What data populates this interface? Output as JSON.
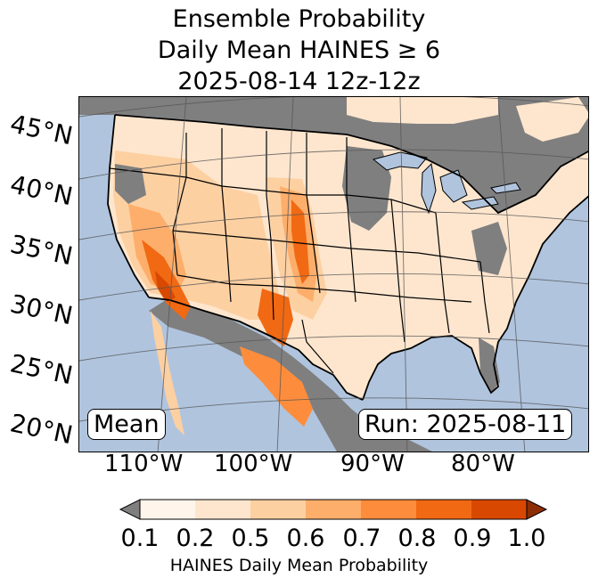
{
  "title": {
    "line1": "Ensemble Probability",
    "line2": "Daily Mean HAINES ≥ 6",
    "line3": "2025-08-14 12z-12z"
  },
  "map": {
    "lat_labels": [
      "45°N",
      "40°N",
      "35°N",
      "30°N",
      "25°N",
      "20°N"
    ],
    "lon_labels": [
      "110°W",
      "100°W",
      "90°W",
      "80°W"
    ],
    "stat_badge": "Mean",
    "run_badge": "Run: 2025-08-11",
    "colors": {
      "ocean": "#b0c4de",
      "no_data_land": "#7f7f7f",
      "border": "#000000",
      "graticule": "#555555"
    }
  },
  "colorbar": {
    "ticks": [
      "0.1",
      "0.2",
      "0.5",
      "0.6",
      "0.7",
      "0.8",
      "0.9",
      "1.0"
    ],
    "colors": [
      "#fff5eb",
      "#fee6ce",
      "#fdd0a2",
      "#fdae6b",
      "#fd8d3c",
      "#f16913",
      "#d94801",
      "#8c2d04"
    ],
    "under_color": "#7f7f7f",
    "over_color": "#8c2d04",
    "label": "HAINES Daily Mean Probability"
  }
}
